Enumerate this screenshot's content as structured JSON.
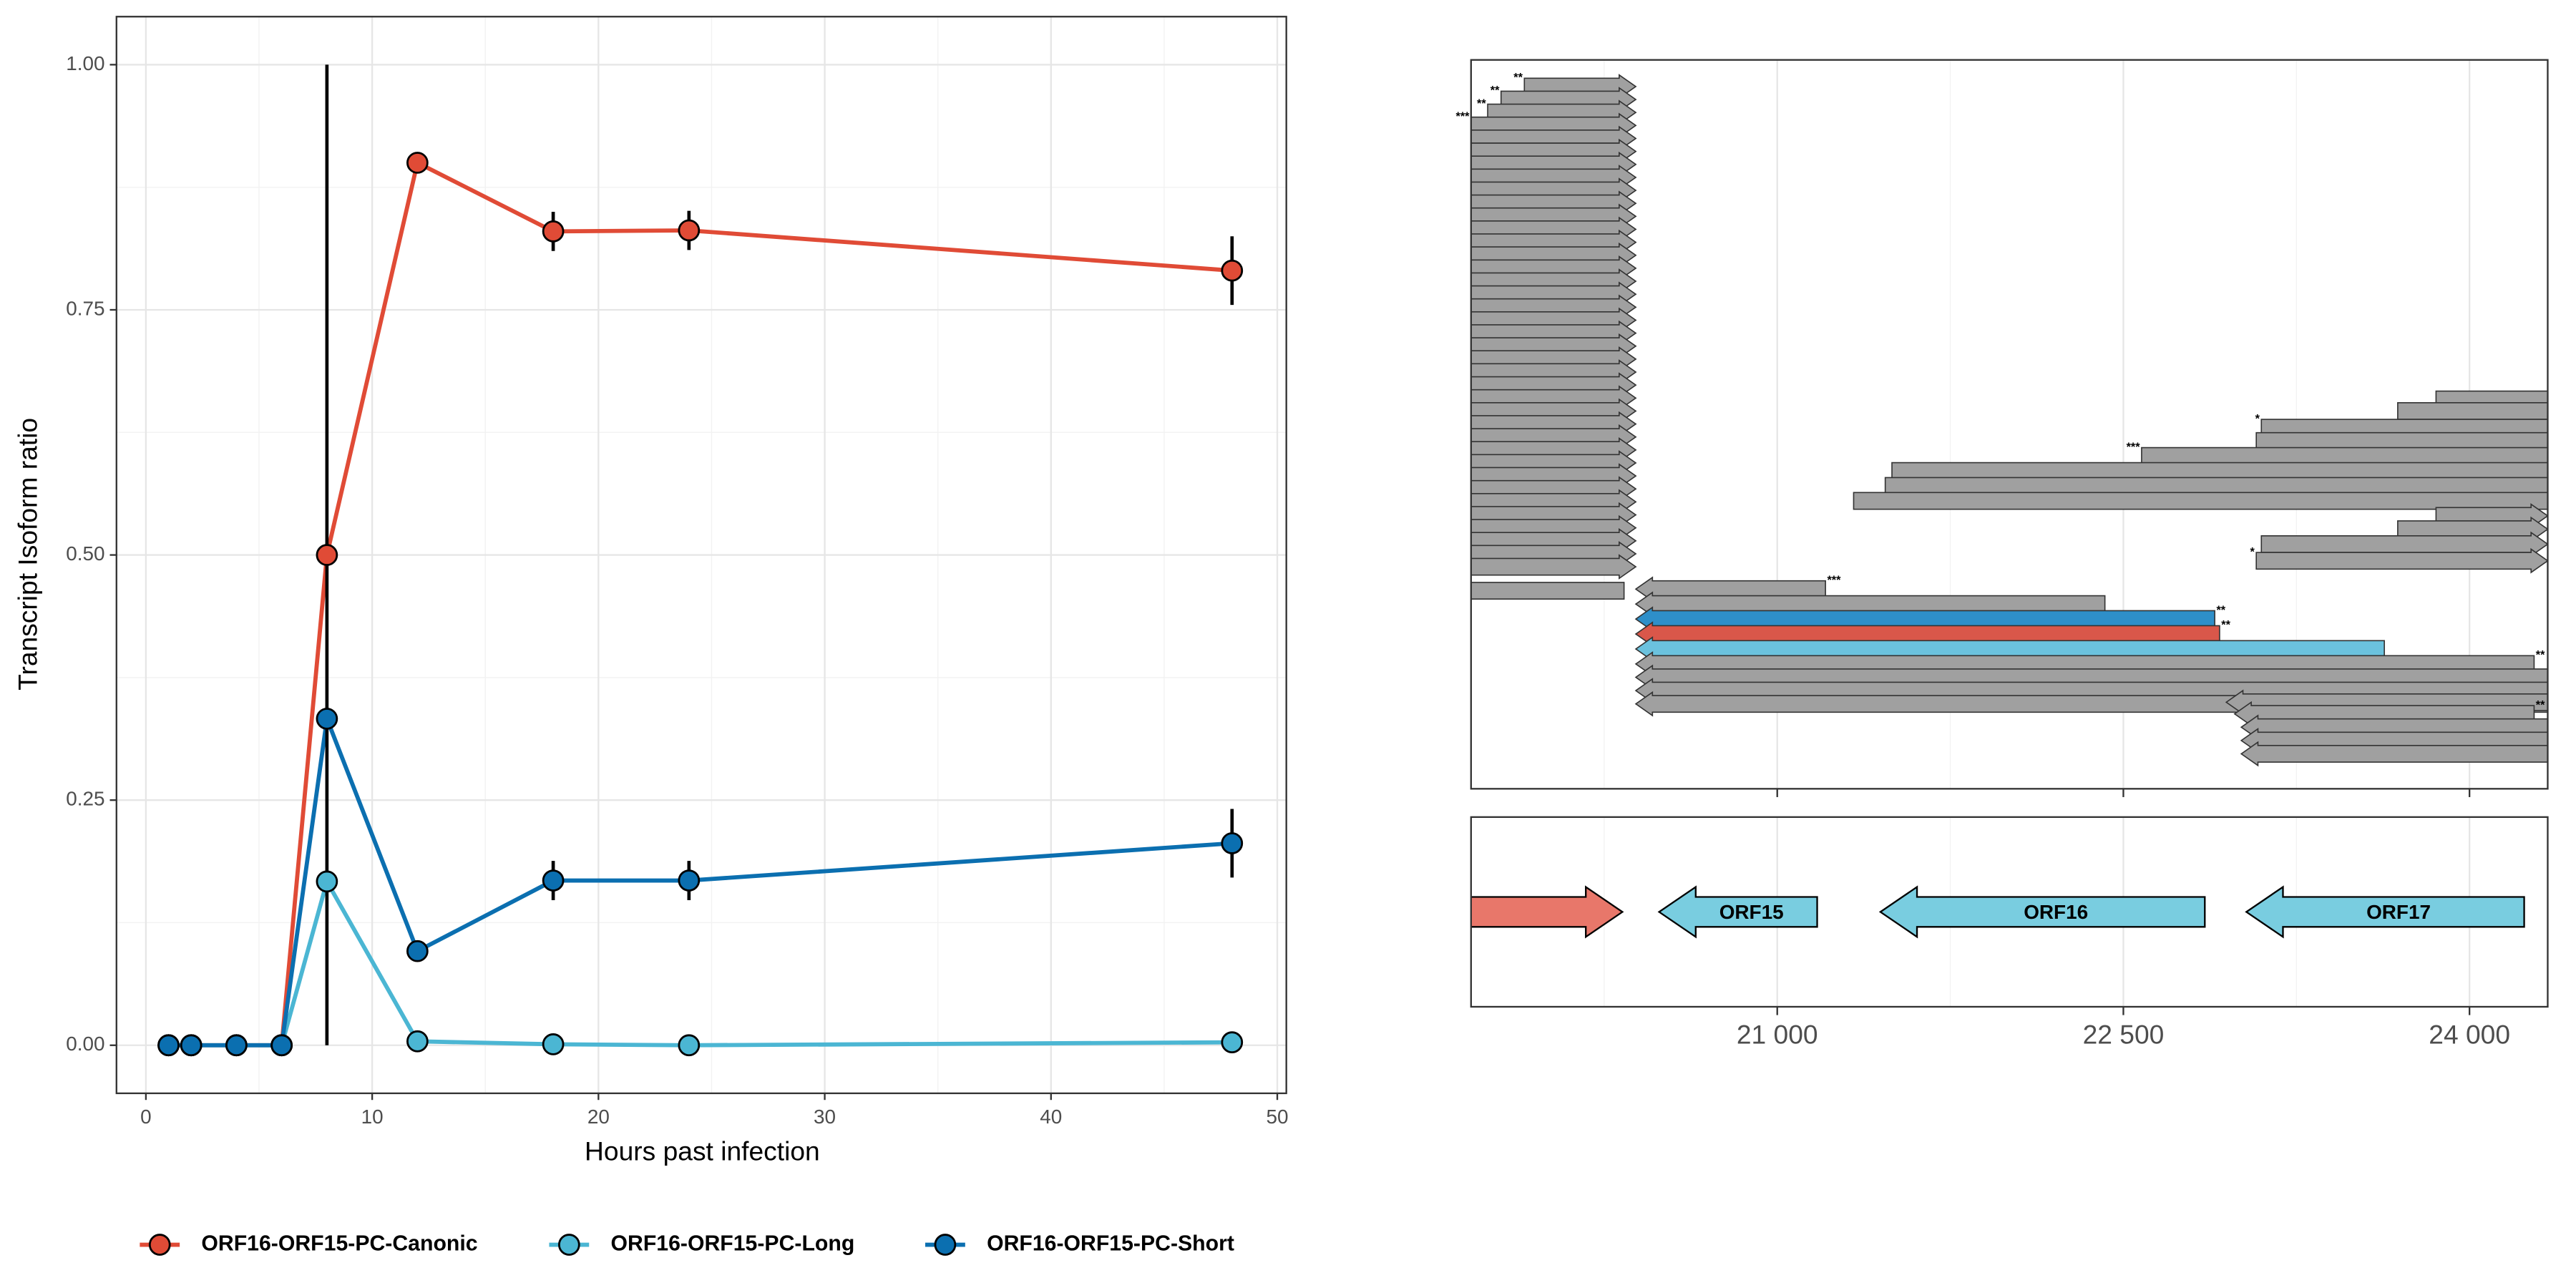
{
  "chart_data": [
    {
      "type": "line",
      "x_label": "Hours past infection",
      "y_label": "Transcript Isoform ratio",
      "x": [
        1,
        2,
        4,
        6,
        8,
        12,
        18,
        24,
        48
      ],
      "series": [
        {
          "name": "ORF16-ORF15-PC-Canonic",
          "color": "#e04b36",
          "values": [
            0,
            0,
            0,
            0,
            0.5,
            0.9,
            0.83,
            0.831,
            0.79
          ],
          "errors": [
            null,
            null,
            null,
            null,
            0.5,
            null,
            0.02,
            0.02,
            0.035
          ]
        },
        {
          "name": "ORF16-ORF15-PC-Long",
          "color": "#4bb6d3",
          "values": [
            0,
            0,
            0,
            0,
            0.167,
            0.004,
            0.001,
            0,
            0.003
          ],
          "errors": [
            null,
            null,
            null,
            null,
            null,
            null,
            null,
            null,
            null
          ]
        },
        {
          "name": "ORF16-ORF15-PC-Short",
          "color": "#0b6fb0",
          "values": [
            0,
            0,
            0,
            0,
            0.333,
            0.096,
            0.168,
            0.168,
            0.206
          ],
          "errors": [
            null,
            null,
            null,
            null,
            null,
            null,
            0.02,
            0.02,
            0.035
          ]
        }
      ],
      "xlim": [
        -1.3,
        50.4
      ],
      "xticks": [
        0,
        10,
        20,
        30,
        40,
        50
      ],
      "minor_xticks": [
        5,
        15,
        25,
        35,
        45
      ],
      "ylim": [
        -0.049,
        1.049
      ],
      "yticks": [
        {
          "value": 0,
          "label": "0.00"
        },
        {
          "value": 0.25,
          "label": "0.25"
        },
        {
          "value": 0.5,
          "label": "0.50"
        },
        {
          "value": 0.75,
          "label": "0.75"
        },
        {
          "value": 1,
          "label": "1.00"
        }
      ],
      "minor_yticks": [
        0.125,
        0.375,
        0.625,
        0.875
      ],
      "grid": true,
      "legend": "bottom"
    },
    {
      "type": "transcripts",
      "xlim": [
        19673,
        24339
      ],
      "xticks": [
        {
          "value": 21000,
          "label": "21 000"
        },
        {
          "value": 22500,
          "label": "22 500"
        },
        {
          "value": 24000,
          "label": "24 000"
        }
      ],
      "minor_xticks": [
        20250,
        21750,
        23250
      ],
      "grid": true,
      "transcripts": [
        {
          "start": 19904,
          "end": 20387,
          "strand": "+",
          "color": "#a0a0a0",
          "label": "**"
        },
        {
          "start": 19803,
          "end": 20387,
          "strand": "+",
          "color": "#a0a0a0",
          "label": "**"
        },
        {
          "start": 19745,
          "end": 20387,
          "strand": "+",
          "color": "#a0a0a0",
          "label": "**"
        },
        {
          "start": 19673,
          "end": 20387,
          "strand": "+",
          "color": "#a0a0a0",
          "label": "***"
        },
        {
          "start": 19673,
          "end": 20387,
          "strand": "+",
          "color": "#a0a0a0"
        },
        {
          "start": 19673,
          "end": 20387,
          "strand": "+",
          "color": "#a0a0a0"
        },
        {
          "start": 19673,
          "end": 20387,
          "strand": "+",
          "color": "#a0a0a0"
        },
        {
          "start": 19673,
          "end": 20387,
          "strand": "+",
          "color": "#a0a0a0"
        },
        {
          "start": 19673,
          "end": 20387,
          "strand": "+",
          "color": "#a0a0a0"
        },
        {
          "start": 19673,
          "end": 20387,
          "strand": "+",
          "color": "#a0a0a0"
        },
        {
          "start": 19673,
          "end": 20387,
          "strand": "+",
          "color": "#a0a0a0"
        },
        {
          "start": 19673,
          "end": 20387,
          "strand": "+",
          "color": "#a0a0a0"
        },
        {
          "start": 19673,
          "end": 20387,
          "strand": "+",
          "color": "#a0a0a0"
        },
        {
          "start": 19673,
          "end": 20387,
          "strand": "+",
          "color": "#a0a0a0"
        },
        {
          "start": 19673,
          "end": 20387,
          "strand": "+",
          "color": "#a0a0a0"
        },
        {
          "start": 19673,
          "end": 20387,
          "strand": "+",
          "color": "#a0a0a0"
        },
        {
          "start": 19673,
          "end": 20387,
          "strand": "+",
          "color": "#a0a0a0"
        },
        {
          "start": 19673,
          "end": 20387,
          "strand": "+",
          "color": "#a0a0a0"
        },
        {
          "start": 19673,
          "end": 20387,
          "strand": "+",
          "color": "#a0a0a0"
        },
        {
          "start": 19673,
          "end": 20387,
          "strand": "+",
          "color": "#a0a0a0"
        },
        {
          "start": 19673,
          "end": 20387,
          "strand": "+",
          "color": "#a0a0a0"
        },
        {
          "start": 19673,
          "end": 20387,
          "strand": "+",
          "color": "#a0a0a0"
        },
        {
          "start": 19673,
          "end": 20387,
          "strand": "+",
          "color": "#a0a0a0"
        },
        {
          "start": 19673,
          "end": 20387,
          "strand": "+",
          "color": "#a0a0a0"
        },
        {
          "start": 19673,
          "end": 20387,
          "strand": "+",
          "color": "#a0a0a0"
        },
        {
          "start": 19673,
          "end": 20387,
          "strand": "+",
          "color": "#a0a0a0"
        },
        {
          "start": 19673,
          "end": 20387,
          "strand": "+",
          "color": "#a0a0a0"
        },
        {
          "start": 19673,
          "end": 20387,
          "strand": "+",
          "color": "#a0a0a0"
        },
        {
          "start": 19673,
          "end": 20387,
          "strand": "+",
          "color": "#a0a0a0"
        },
        {
          "start": 19673,
          "end": 20387,
          "strand": "+",
          "color": "#a0a0a0"
        },
        {
          "start": 19673,
          "end": 20387,
          "strand": "+",
          "color": "#a0a0a0"
        },
        {
          "start": 19673,
          "end": 20387,
          "strand": "+",
          "color": "#a0a0a0"
        },
        {
          "start": 19673,
          "end": 20387,
          "strand": "+",
          "color": "#a0a0a0"
        },
        {
          "start": 19673,
          "end": 20387,
          "strand": "+",
          "color": "#a0a0a0"
        },
        {
          "start": 19673,
          "end": 20387,
          "strand": "+",
          "color": "#a0a0a0"
        },
        {
          "start": 19673,
          "end": 20387,
          "strand": "+",
          "color": "#a0a0a0"
        },
        {
          "start": 19673,
          "end": 20387,
          "strand": "+",
          "color": "#a0a0a0"
        },
        {
          "start": 19673,
          "end": 20387,
          "strand": "+",
          "color": "#a0a0a0"
        },
        {
          "start": 23855,
          "end": 24450,
          "strand": "+",
          "color": "#a0a0a0"
        },
        {
          "start": 23689,
          "end": 24450,
          "strand": "+",
          "color": "#a0a0a0"
        },
        {
          "start": 23098,
          "end": 24450,
          "strand": "+",
          "color": "#a0a0a0",
          "label": "*"
        },
        {
          "start": 23076,
          "end": 24450,
          "strand": "+",
          "color": "#a0a0a0"
        },
        {
          "start": 22579,
          "end": 24450,
          "strand": "+",
          "color": "#a0a0a0",
          "label": "***"
        },
        {
          "start": 21497,
          "end": 24450,
          "strand": "+",
          "color": "#a0a0a0"
        },
        {
          "start": 21468,
          "end": 24450,
          "strand": "+",
          "color": "#a0a0a0"
        },
        {
          "start": 21331,
          "end": 24450,
          "strand": "+",
          "color": "#a0a0a0"
        },
        {
          "start": 23855,
          "end": 24339,
          "strand": "+",
          "color": "#a0a0a0"
        },
        {
          "start": 23689,
          "end": 24339,
          "strand": "+",
          "color": "#a0a0a0"
        },
        {
          "start": 23098,
          "end": 24339,
          "strand": "+",
          "color": "#a0a0a0"
        },
        {
          "start": 23076,
          "end": 24339,
          "strand": "+",
          "color": "#a0a0a0",
          "label": "*"
        },
        {
          "start": 19500,
          "end": 20336,
          "strand": "-",
          "color": "#a0a0a0"
        },
        {
          "start": 20387,
          "end": 21209,
          "strand": "-",
          "color": "#a0a0a0",
          "label": "***"
        },
        {
          "start": 20387,
          "end": 22420,
          "strand": "-",
          "color": "#a0a0a0"
        },
        {
          "start": 20387,
          "end": 22896,
          "strand": "-",
          "color": "#2e8fc9",
          "label": "**"
        },
        {
          "start": 20387,
          "end": 22917,
          "strand": "-",
          "color": "#d9574a",
          "label": "**"
        },
        {
          "start": 20387,
          "end": 23631,
          "strand": "-",
          "color": "#6bc2de"
        },
        {
          "start": 20387,
          "end": 24280,
          "strand": "-",
          "color": "#a0a0a0",
          "label": "**"
        },
        {
          "start": 20387,
          "end": 24450,
          "strand": "-",
          "color": "#a0a0a0"
        },
        {
          "start": 20387,
          "end": 24450,
          "strand": "-",
          "color": "#a0a0a0"
        },
        {
          "start": 20387,
          "end": 24450,
          "strand": "-",
          "color": "#a0a0a0"
        },
        {
          "start": 22946,
          "end": 24450,
          "strand": "-",
          "color": "#a0a0a0"
        },
        {
          "start": 22982,
          "end": 24280,
          "strand": "-",
          "color": "#a0a0a0",
          "label": "**"
        },
        {
          "start": 23011,
          "end": 24450,
          "strand": "-",
          "color": "#a0a0a0"
        },
        {
          "start": 23011,
          "end": 24450,
          "strand": "-",
          "color": "#a0a0a0"
        },
        {
          "start": 23011,
          "end": 24450,
          "strand": "-",
          "color": "#a0a0a0"
        }
      ],
      "genes": [
        {
          "start": 19500,
          "end": 20329,
          "strand": "+",
          "color": "#e8776a"
        },
        {
          "name": "ORF15",
          "start": 20488,
          "end": 21173,
          "strand": "-",
          "color": "#79cde0"
        },
        {
          "name": "ORF16",
          "start": 21447,
          "end": 22853,
          "strand": "-",
          "color": "#79cde0"
        },
        {
          "name": "ORF17",
          "start": 23033,
          "end": 24237,
          "strand": "-",
          "color": "#79cde0"
        }
      ]
    }
  ]
}
